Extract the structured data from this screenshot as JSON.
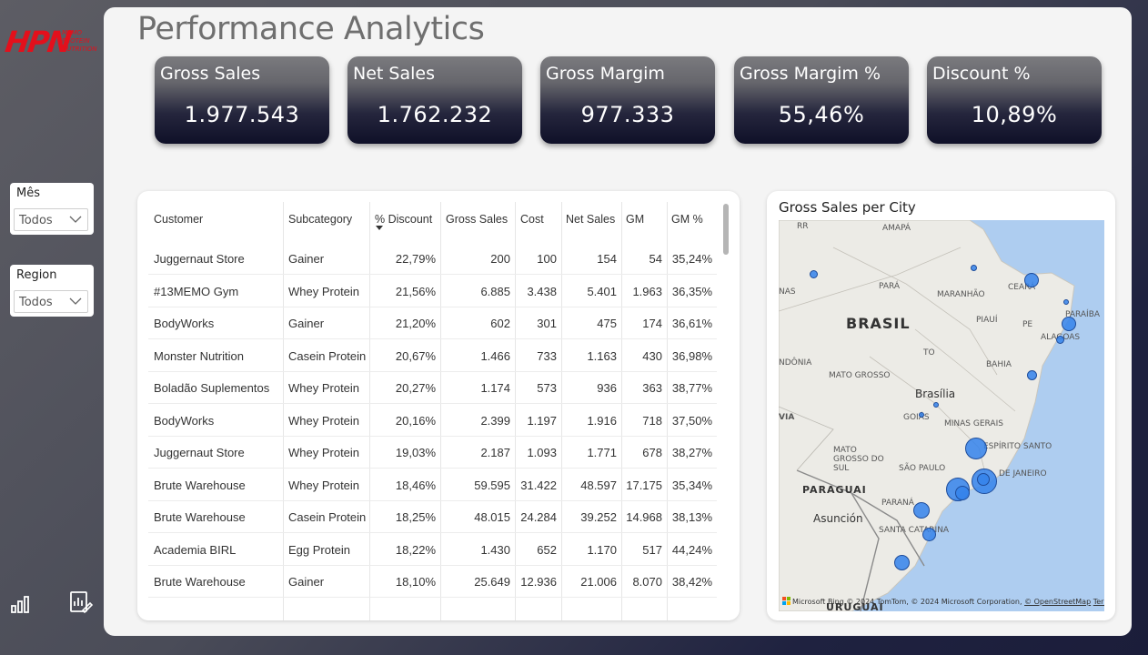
{
  "brand": {
    "logo": "HPN",
    "tagline": "MEMO PROTEIN NUTRITION"
  },
  "page_title": "Performance Analytics",
  "slicers": [
    {
      "title": "Mês",
      "value": "Todos"
    },
    {
      "title": "Region",
      "value": "Todos"
    }
  ],
  "kpis": [
    {
      "label": "Gross Sales",
      "value": "1.977.543"
    },
    {
      "label": "Net Sales",
      "value": "1.762.232"
    },
    {
      "label": "Gross Margim",
      "value": "977.333"
    },
    {
      "label": "Gross Margim %",
      "value": "55,46%"
    },
    {
      "label": "Discount %",
      "value": "10,89%"
    }
  ],
  "table": {
    "columns": [
      "Customer",
      "Subcategory",
      "% Discount",
      "Gross Sales",
      "Cost",
      "Net Sales",
      "GM",
      "GM %"
    ],
    "sorted_column": "% Discount",
    "rows": [
      [
        "Juggernaut Store",
        "Gainer",
        "22,79%",
        "200",
        "100",
        "154",
        "54",
        "35,24%"
      ],
      [
        "#13MEMO Gym",
        "Whey Protein",
        "21,56%",
        "6.885",
        "3.438",
        "5.401",
        "1.963",
        "36,35%"
      ],
      [
        "BodyWorks",
        "Gainer",
        "21,20%",
        "602",
        "301",
        "475",
        "174",
        "36,61%"
      ],
      [
        "Monster Nutrition",
        "Casein Protein",
        "20,67%",
        "1.466",
        "733",
        "1.163",
        "430",
        "36,98%"
      ],
      [
        "Boladão Suplementos",
        "Whey Protein",
        "20,27%",
        "1.174",
        "573",
        "936",
        "363",
        "38,77%"
      ],
      [
        "BodyWorks",
        "Whey Protein",
        "20,16%",
        "2.399",
        "1.197",
        "1.916",
        "718",
        "37,50%"
      ],
      [
        "Juggernaut Store",
        "Whey Protein",
        "19,03%",
        "2.187",
        "1.093",
        "1.771",
        "678",
        "38,27%"
      ],
      [
        "Brute Warehouse",
        "Whey Protein",
        "18,46%",
        "59.595",
        "31.422",
        "48.597",
        "17.175",
        "35,34%"
      ],
      [
        "Brute Warehouse",
        "Casein Protein",
        "18,25%",
        "48.015",
        "24.284",
        "39.252",
        "14.968",
        "38,13%"
      ],
      [
        "Academia BIRL",
        "Egg Protein",
        "18,22%",
        "1.430",
        "652",
        "1.170",
        "517",
        "44,24%"
      ],
      [
        "Brute Warehouse",
        "Gainer",
        "18,10%",
        "25.649",
        "12.936",
        "21.006",
        "8.070",
        "38,42%"
      ]
    ]
  },
  "map": {
    "title": "Gross Sales per City",
    "labels": {
      "brasil": "BRASIL",
      "brasilia": "Brasília",
      "paraguai": "PARAGUAI",
      "asuncion": "Asunción",
      "uruguai": "URUGUAI",
      "amapa": "AMAPÁ",
      "rr": "RR",
      "para": "PARÁ",
      "maranhao": "MARANHÃO",
      "ceara": "CEARÁ",
      "piaui": "PIAUÍ",
      "pe": "PE",
      "paraiba": "PARAÍBA",
      "alagoas": "ALAGOAS",
      "nas": "NAS",
      "to": "TO",
      "bahia": "BAHIA",
      "ndonia": "NDÔNIA",
      "mato_grosso": "MATO GROSSO",
      "via": "VIA",
      "goias": "GOIÁS",
      "minas": "MINAS GERAIS",
      "espirito": "ESPÍRITO SANTO",
      "mgs": "MATO GROSSO DO SUL",
      "sao_paulo": "SÃO PAULO",
      "rio": "DE JANEIRO",
      "parana": "PARANÁ",
      "santa_catarina": "SANTA CATARINA"
    },
    "credit_ms": "Microsoft Bing",
    "credit": "© 2024 TomTom, © 2024 Microsoft Corporation,",
    "credit_osm": "© OpenStreetMap",
    "credit_terms": "Terms"
  },
  "icons": {
    "nav_left": "bar-chart-icon",
    "nav_right": "report-edit-icon"
  }
}
